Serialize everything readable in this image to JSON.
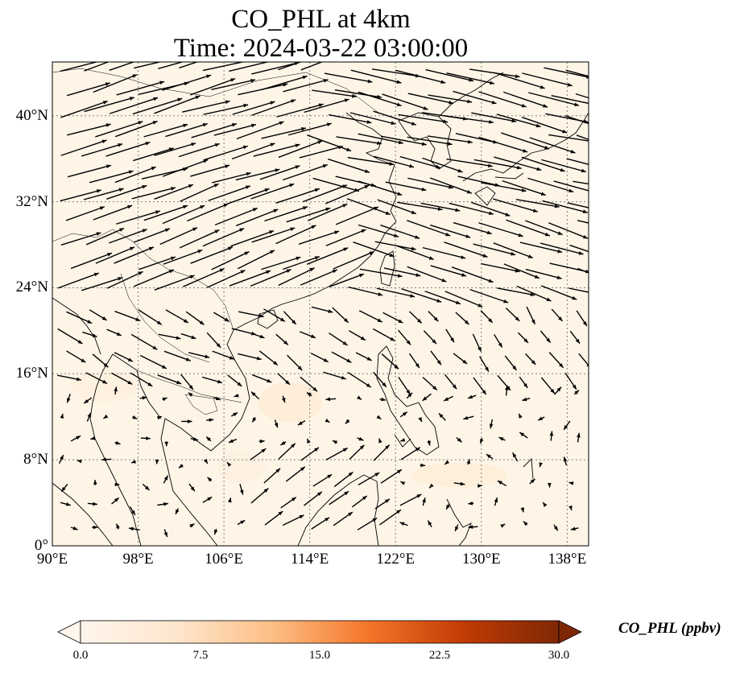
{
  "title": {
    "line1": "CO_PHL at 4km",
    "line2": "Time: 2024-03-22 03:00:00"
  },
  "map": {
    "lon_range": [
      90,
      140
    ],
    "lat_range": [
      0,
      45
    ],
    "gridlines": true,
    "lon_ticks": [
      {
        "value": 90,
        "label": "90°E"
      },
      {
        "value": 98,
        "label": "98°E"
      },
      {
        "value": 106,
        "label": "106°E"
      },
      {
        "value": 114,
        "label": "114°E"
      },
      {
        "value": 122,
        "label": "122°E"
      },
      {
        "value": 130,
        "label": "130°E"
      },
      {
        "value": 138,
        "label": "138°E"
      }
    ],
    "lat_ticks": [
      {
        "value": 0,
        "label": "0°"
      },
      {
        "value": 8,
        "label": "8°N"
      },
      {
        "value": 16,
        "label": "16°N"
      },
      {
        "value": 24,
        "label": "24°N"
      },
      {
        "value": 32,
        "label": "32°N"
      },
      {
        "value": 40,
        "label": "40°N"
      }
    ],
    "field_color": "#fef5e7",
    "wind_vectors": "dense field, westerly north of 24°N, weak and variable south of 16°N"
  },
  "colorbar": {
    "label": "CO_PHL (ppbv)",
    "min": 0.0,
    "max": 30.0,
    "extend": "both",
    "ticks": [
      "0.0",
      "7.5",
      "15.0",
      "22.5",
      "30.0"
    ],
    "colors": [
      "#fff5eb",
      "#fdd9b4",
      "#fda762",
      "#f3701b",
      "#c54102",
      "#7f2704"
    ]
  }
}
